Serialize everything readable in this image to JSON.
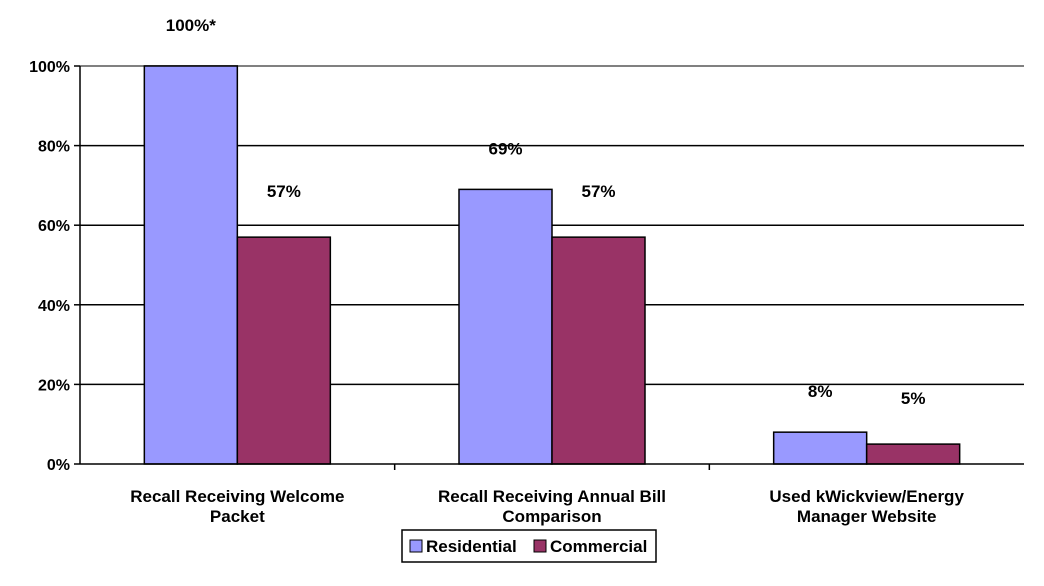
{
  "chart_data": {
    "type": "bar",
    "categories": [
      [
        "Recall Receiving Welcome",
        "Packet"
      ],
      [
        "Recall Receiving Annual Bill",
        "Comparison"
      ],
      [
        "Used kWickview/Energy",
        "Manager Website"
      ]
    ],
    "series": [
      {
        "name": "Residential",
        "color": "#9999ff",
        "values": [
          100,
          69,
          8
        ],
        "labels": [
          "100%*",
          "69%",
          "8%"
        ]
      },
      {
        "name": "Commercial",
        "color": "#993366",
        "values": [
          57,
          57,
          5
        ],
        "labels": [
          "57%",
          "57%",
          "5%"
        ]
      }
    ],
    "ylim": [
      0,
      100
    ],
    "yticks": [
      0,
      20,
      40,
      60,
      80,
      100
    ],
    "ytick_labels": [
      "0%",
      "20%",
      "40%",
      "60%",
      "80%",
      "100%"
    ],
    "grid": true,
    "legend": "bottom",
    "title": "",
    "xlabel": "",
    "ylabel": ""
  }
}
